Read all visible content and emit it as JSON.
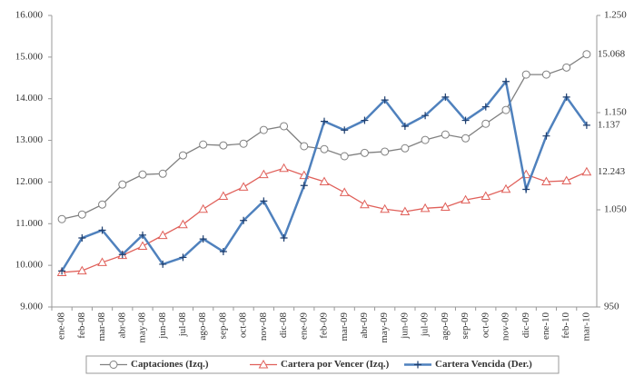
{
  "chart_data": {
    "type": "line",
    "categories": [
      "ene-08",
      "feb-08",
      "mar-08",
      "abr-08",
      "may-08",
      "jun-08",
      "jul-08",
      "ago-08",
      "sep-08",
      "oct-08",
      "nov-08",
      "dic-08",
      "ene-09",
      "feb-09",
      "mar-09",
      "abr-09",
      "may-09",
      "jun-09",
      "jul-09",
      "ago-09",
      "sep-09",
      "oct-09",
      "nov-09",
      "dic-09",
      "ene-10",
      "feb-10",
      "mar-10"
    ],
    "ylim": [
      9000,
      16000
    ],
    "yticks": [
      {
        "value": 9000,
        "label": "9.000"
      },
      {
        "value": 10000,
        "label": "10.000"
      },
      {
        "value": 11000,
        "label": "11.000"
      },
      {
        "value": 12000,
        "label": "12.000"
      },
      {
        "value": 13000,
        "label": "13.000"
      },
      {
        "value": 14000,
        "label": "14.000"
      },
      {
        "value": 15000,
        "label": "15.000"
      },
      {
        "value": 16000,
        "label": "16.000"
      }
    ],
    "y2lim": [
      950,
      1250
    ],
    "y2ticks": [
      950,
      {
        "value": 1050,
        "label": "1.050"
      },
      {
        "value": 1150,
        "label": "1.150"
      },
      {
        "value": 1250,
        "label": "1.250"
      }
    ],
    "series": [
      {
        "name": "Captaciones (Izq.)",
        "color": "#808080",
        "marker": "circle",
        "values": [
          11110,
          11220,
          11460,
          11940,
          12180,
          12200,
          12640,
          12900,
          12880,
          12920,
          13250,
          13340,
          12860,
          12790,
          12620,
          12700,
          12730,
          12810,
          13010,
          13140,
          13050,
          13400,
          13730,
          14580,
          14580,
          14750,
          15068
        ],
        "value_labels": [
          null,
          null,
          null,
          null,
          null,
          null,
          null,
          null,
          null,
          null,
          null,
          null,
          null,
          null,
          null,
          null,
          null,
          null,
          null,
          null,
          null,
          null,
          null,
          null,
          null,
          null,
          "15.068"
        ]
      },
      {
        "name": "Cartera por Vencer (Izq.)",
        "color": "#e0605a",
        "marker": "triangle",
        "values": [
          9830,
          9870,
          10070,
          10240,
          10460,
          10720,
          10980,
          11350,
          11660,
          11880,
          12180,
          12330,
          12160,
          12010,
          11750,
          11460,
          11350,
          11290,
          11370,
          11400,
          11570,
          11660,
          11830,
          12180,
          12010,
          12030,
          12243
        ],
        "value_labels": [
          null,
          null,
          null,
          null,
          null,
          null,
          null,
          null,
          null,
          null,
          null,
          null,
          null,
          null,
          null,
          null,
          null,
          null,
          null,
          null,
          null,
          null,
          null,
          null,
          null,
          null,
          "12.243"
        ]
      },
      {
        "name": "Cartera Vencida (Der.)",
        "color": "#4f81bd",
        "marker": "plus",
        "axis": "y2",
        "values": [
          987,
          1021,
          1029,
          1004,
          1024,
          994,
          1001,
          1020,
          1007,
          1039,
          1059,
          1021,
          1075,
          1141,
          1132,
          1142,
          1163,
          1136,
          1147,
          1166,
          1142,
          1156,
          1182,
          1071,
          1126,
          1166,
          1137
        ],
        "value_labels": [
          null,
          null,
          null,
          null,
          null,
          null,
          null,
          null,
          null,
          null,
          null,
          null,
          null,
          null,
          null,
          null,
          null,
          null,
          null,
          null,
          null,
          null,
          null,
          null,
          null,
          null,
          "1.137"
        ]
      }
    ]
  }
}
